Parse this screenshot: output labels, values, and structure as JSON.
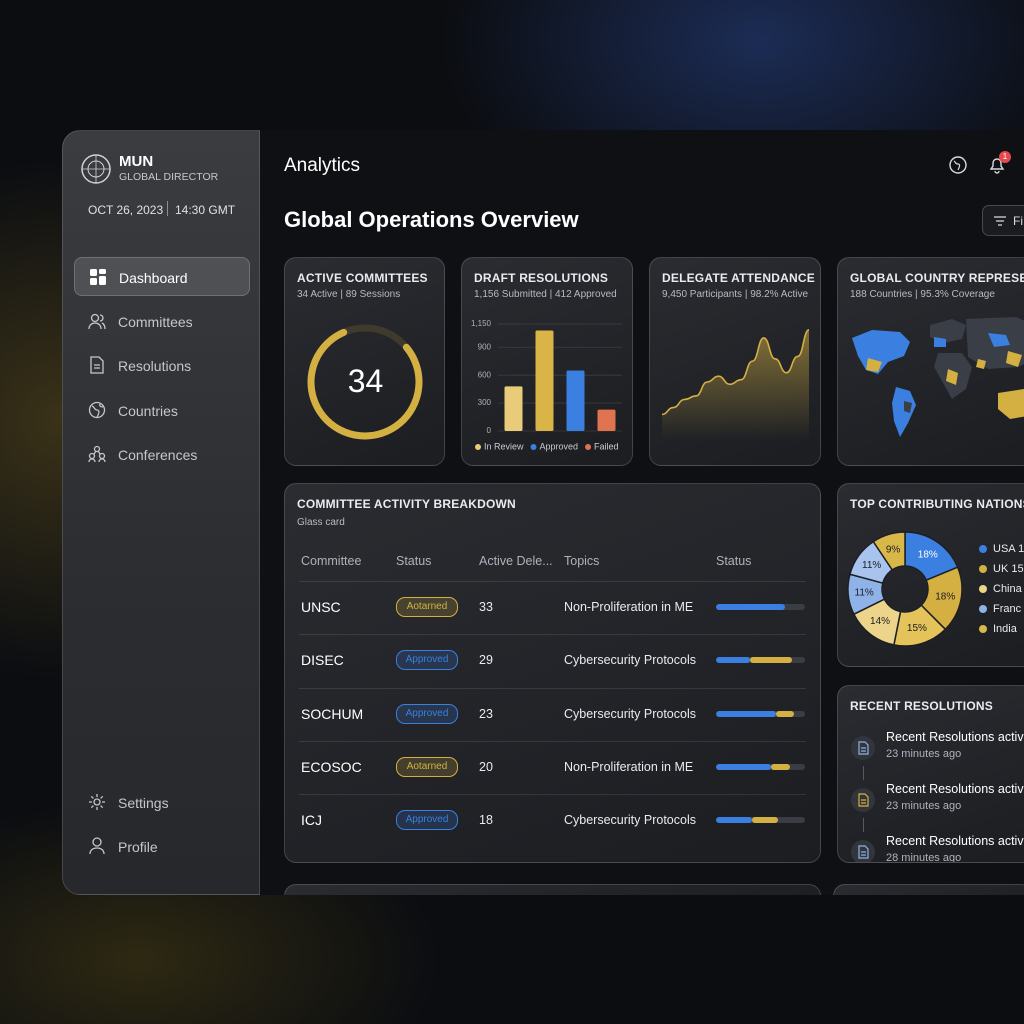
{
  "sidebar": {
    "brand": "MUN",
    "role": "GLOBAL DIRECTOR",
    "date": "OCT 26, 2023",
    "time": "14:30 GMT",
    "nav": [
      "Dashboard",
      "Committees",
      "Resolutions",
      "Countries",
      "Conferences"
    ],
    "footer_nav": [
      "Settings",
      "Profile"
    ]
  },
  "header": {
    "section": "Analytics",
    "notifications": "1",
    "title": "Global Operations Overview",
    "filter": "Fi"
  },
  "cards": {
    "active_committees": {
      "title": "ACTIVE COMMITTEES",
      "subtitle": "34 Active | 89 Sessions",
      "value": "34"
    },
    "draft_resolutions": {
      "title": "DRAFT RESOLUTIONS",
      "subtitle": "1,156 Submitted | 412 Approved",
      "chart": {
        "type": "bar",
        "categories": [
          null,
          null,
          null,
          null
        ],
        "values": [
          480,
          1080,
          650,
          230
        ],
        "colors": [
          "#e8cc7a",
          "#d9b446",
          "#3b7fe0",
          "#e07350"
        ],
        "ylim": [
          0,
          1150
        ],
        "yticks": [
          0,
          300,
          600,
          900,
          {
            "value": 1150,
            "label": "1,150"
          }
        ],
        "grid": true,
        "legend": [
          {
            "name": "In Review",
            "color": "#e8cc7a"
          },
          {
            "name": "Approved",
            "color": "#3b7fe0"
          },
          {
            "name": "Failed",
            "color": "#e07350"
          }
        ]
      }
    },
    "delegate_attendance": {
      "title": "DELEGATE ATTENDANCE",
      "subtitle": "9,450 Participants | 98.2% Active",
      "chart": {
        "type": "area",
        "values": [
          22,
          28,
          35,
          38,
          50,
          55,
          48,
          52,
          68,
          88,
          70,
          58,
          72,
          95
        ],
        "ylim": [
          0,
          100
        ],
        "color": "#d4b043"
      }
    },
    "country_representation": {
      "title": "GLOBAL COUNTRY REPRESENTA",
      "subtitle": "188 Countries | 95.3% Coverage"
    }
  },
  "table": {
    "title": "COMMITTEE ACTIVITY BREAKDOWN",
    "subtitle": "Glass card",
    "columns": [
      "Committee",
      "Status",
      "Active Dele...",
      "Topics",
      "Status"
    ],
    "rows": [
      {
        "committee": "UNSC",
        "status": "Aotarned",
        "status_color": "#d4b043",
        "delegates": 33,
        "topic": "Non-Proliferation in ME",
        "progress": [
          78
        ]
      },
      {
        "committee": "DISEC",
        "status": "Approved",
        "status_color": "#3b7fe0",
        "delegates": 29,
        "topic": "Cybersecurity Protocols",
        "progress": [
          38,
          47
        ]
      },
      {
        "committee": "SOCHUM",
        "status": "Approved",
        "status_color": "#3b7fe0",
        "delegates": 23,
        "topic": "Cybersecurity Protocols",
        "progress": [
          67,
          21
        ]
      },
      {
        "committee": "ECOSOC",
        "status": "Aotarned",
        "status_color": "#d4b043",
        "delegates": 20,
        "topic": "Non-Proliferation in ME",
        "progress": [
          62,
          21
        ]
      },
      {
        "committee": "ICJ",
        "status": "Approved",
        "status_color": "#3b7fe0",
        "delegates": 18,
        "topic": "Cybersecurity Protocols",
        "progress": [
          40,
          30
        ]
      }
    ],
    "progress_colors": [
      "#3b7fe0",
      "#d4b043"
    ]
  },
  "nations": {
    "title": "TOP CONTRIBUTING NATIONS",
    "chart": {
      "type": "pie",
      "values": [
        18,
        18,
        15,
        14,
        11,
        11,
        9
      ],
      "value_labels": [
        "18%",
        "18%",
        "15%",
        "14%",
        "11%",
        "11%",
        "9%"
      ],
      "colors": [
        "#3b7fe0",
        "#d4b043",
        "#e3c35a",
        "#ecd58a",
        "#8fb2e8",
        "#a8c4ee",
        "#d9b84a"
      ],
      "legend": [
        {
          "name": "USA 1",
          "color": "#3b7fe0"
        },
        {
          "name": "UK 15",
          "color": "#d4b043"
        },
        {
          "name": "China",
          "color": "#ecd58a"
        },
        {
          "name": "Franc",
          "color": "#8fb2e8"
        },
        {
          "name": "India",
          "color": "#d9b84a"
        }
      ]
    }
  },
  "recent": {
    "title": "RECENT RESOLUTIONS",
    "items": [
      {
        "text": "Recent Resolutions activ",
        "time": "23 minutes ago"
      },
      {
        "text": "Recent Resolutions activ",
        "time": "23 minutes ago"
      },
      {
        "text": "Recent Resolutions activ",
        "time": "28 minutes ago"
      }
    ]
  }
}
